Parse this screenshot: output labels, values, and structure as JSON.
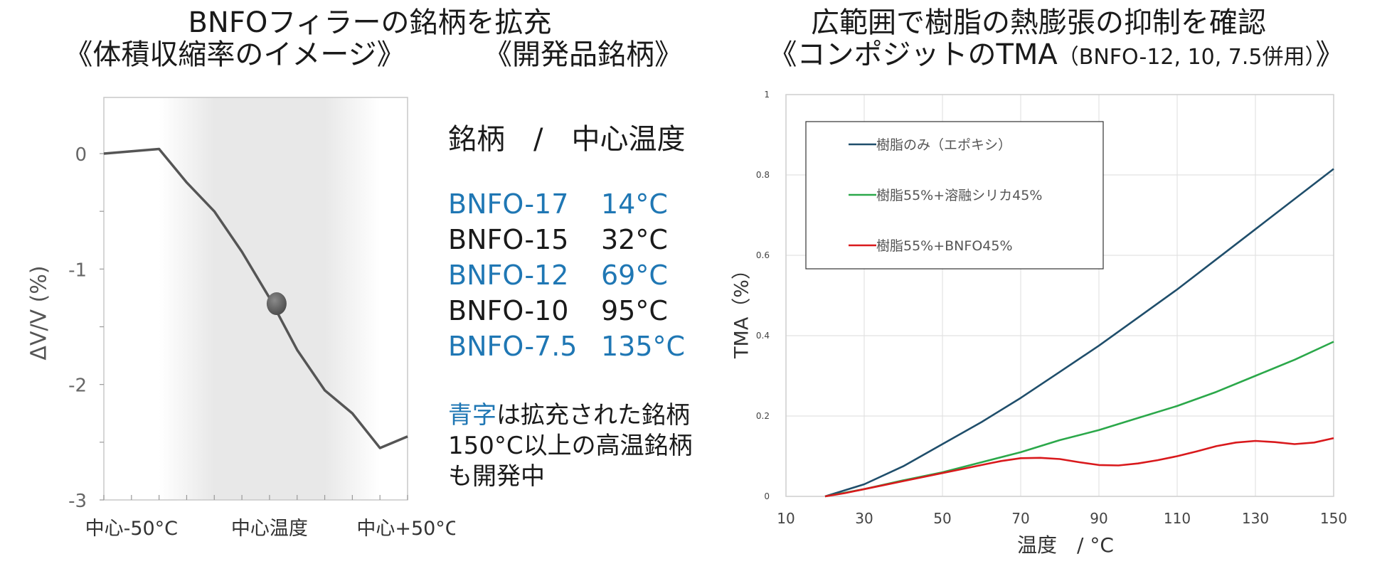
{
  "left_panel": {
    "title": "BNFOフィラーの銘柄を拡充",
    "subtitle_left": "《体積収縮率のイメージ》",
    "subtitle_right": "《開発品銘柄》"
  },
  "right_panel": {
    "title": "広範囲で樹脂の熱膨張の抑制を確認",
    "subtitle_main": "《コンポジットのTMA",
    "subtitle_small": "（BNFO-12, 10, 7.5併用）",
    "subtitle_end": "》"
  },
  "brand_table": {
    "header": "銘柄　/　中心温度",
    "rows": [
      {
        "name": "BNFO-17",
        "temp": "14°C",
        "color": "#1f77b4"
      },
      {
        "name": "BNFO-15",
        "temp": "32°C",
        "color": "#1a1a1a"
      },
      {
        "name": "BNFO-12",
        "temp": "69°C",
        "color": "#1f77b4"
      },
      {
        "name": "BNFO-10",
        "temp": "95°C",
        "color": "#1a1a1a"
      },
      {
        "name": "BNFO-7.5",
        "temp": "135°C",
        "color": "#1f77b4"
      }
    ],
    "note_highlight": "青字",
    "note_line1_rest": "は拡充された銘柄",
    "note_line2": "150°C以上の高温銘柄",
    "note_line3": "も開発中",
    "highlight_color": "#1f77b4"
  },
  "chart_data": [
    {
      "type": "line",
      "title": "体積収縮率のイメージ",
      "ylabel": "ΔV/V (%)",
      "xlabel": "",
      "ylim": [
        -3,
        0.5
      ],
      "xlim": [
        -60,
        50
      ],
      "yticks": [
        0,
        -1,
        -2,
        -3
      ],
      "ytick_labels": [
        "0",
        "-1",
        "-2",
        "-3"
      ],
      "xtick_labels": [
        {
          "x": -50,
          "label": "中心-50°C"
        },
        {
          "x": 0,
          "label": "中心温度"
        },
        {
          "x": 50,
          "label": "中心+50°C"
        }
      ],
      "shaded_range": [
        -40,
        40
      ],
      "series": [
        {
          "name": "profile",
          "color": "#555555",
          "x": [
            -60,
            -50,
            -40,
            -30,
            -20,
            -10,
            0,
            10,
            20,
            30,
            40,
            50
          ],
          "y": [
            0,
            0.02,
            0.04,
            -0.25,
            -0.5,
            -0.85,
            -1.25,
            -1.7,
            -2.05,
            -2.25,
            -2.55,
            -2.45
          ]
        }
      ],
      "marker": {
        "x": 0,
        "y": -1.3
      }
    },
    {
      "type": "line",
      "title": "コンポジットのTMA",
      "xlabel": "温度　/ °C",
      "ylabel": "TMA（%）",
      "xlim": [
        10,
        150
      ],
      "ylim": [
        0,
        1
      ],
      "xticks": [
        10,
        30,
        50,
        70,
        90,
        110,
        130,
        150
      ],
      "yticks": [
        0,
        0.2,
        0.4,
        0.6,
        0.8,
        1
      ],
      "ytick_labels": [
        "0",
        "0.2",
        "0.4",
        "0.6",
        "0.8",
        "1"
      ],
      "grid": true,
      "legend_position": "top-left",
      "series": [
        {
          "name": "樹脂のみ（エポキシ）",
          "color": "#1f4e6b",
          "x": [
            20,
            30,
            40,
            50,
            60,
            70,
            80,
            90,
            100,
            110,
            120,
            130,
            140,
            150
          ],
          "y": [
            0,
            0.03,
            0.075,
            0.13,
            0.185,
            0.245,
            0.31,
            0.375,
            0.445,
            0.515,
            0.59,
            0.665,
            0.74,
            0.815
          ]
        },
        {
          "name": "樹脂55%+溶融シリカ45%",
          "color": "#2ba84a",
          "x": [
            20,
            30,
            40,
            50,
            60,
            70,
            80,
            90,
            100,
            110,
            120,
            130,
            140,
            150
          ],
          "y": [
            0,
            0.018,
            0.04,
            0.06,
            0.085,
            0.11,
            0.14,
            0.165,
            0.195,
            0.225,
            0.26,
            0.3,
            0.34,
            0.385
          ]
        },
        {
          "name": "樹脂55%+BNFO45%",
          "color": "#d9191c",
          "x": [
            20,
            25,
            30,
            35,
            40,
            45,
            50,
            55,
            60,
            65,
            70,
            75,
            80,
            85,
            90,
            95,
            100,
            105,
            110,
            115,
            120,
            125,
            130,
            135,
            140,
            145,
            150
          ],
          "y": [
            0,
            0.008,
            0.018,
            0.028,
            0.038,
            0.048,
            0.058,
            0.068,
            0.078,
            0.088,
            0.095,
            0.096,
            0.093,
            0.085,
            0.078,
            0.077,
            0.082,
            0.09,
            0.1,
            0.112,
            0.125,
            0.134,
            0.138,
            0.135,
            0.13,
            0.134,
            0.145
          ]
        }
      ]
    }
  ]
}
